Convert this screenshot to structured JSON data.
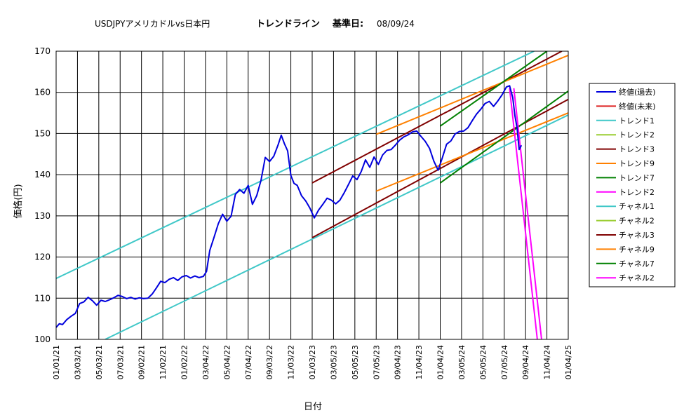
{
  "chart_data": {
    "type": "line",
    "title": "USDJPYアメリカドルvs日本円",
    "subtitle": "トレンドライン",
    "base_date_label": "基準日:",
    "base_date": "08/09/24",
    "xlabel": "日付",
    "ylabel": "価格(円)",
    "ylim": [
      100,
      170
    ],
    "yticks": [
      "100",
      "110",
      "120",
      "130",
      "140",
      "150",
      "160",
      "170"
    ],
    "x_tick_labels": [
      "01/01/21",
      "03/03/21",
      "05/03/21",
      "07/03/21",
      "09/02/21",
      "11/02/21",
      "01/02/22",
      "03/04/22",
      "05/04/22",
      "07/04/22",
      "09/03/22",
      "11/03/22",
      "01/03/23",
      "03/05/23",
      "05/05/23",
      "07/05/23",
      "09/04/23",
      "11/04/23",
      "01/04/24",
      "03/05/24",
      "05/05/24",
      "07/05/24",
      "09/04/24",
      "11/04/24",
      "01/04/25"
    ],
    "grid": true,
    "legend_position": "right",
    "series": [
      {
        "name": "終値(過去)",
        "color": "#0000dd",
        "kind": "close",
        "points": [
          [
            0,
            102.9
          ],
          [
            0.15,
            103.8
          ],
          [
            0.3,
            103.6
          ],
          [
            0.5,
            104.8
          ],
          [
            0.7,
            105.6
          ],
          [
            0.9,
            106.3
          ],
          [
            1.1,
            108.7
          ],
          [
            1.3,
            109.1
          ],
          [
            1.5,
            110.2
          ],
          [
            1.7,
            109.4
          ],
          [
            1.9,
            108.3
          ],
          [
            2.1,
            109.5
          ],
          [
            2.3,
            109.2
          ],
          [
            2.5,
            109.6
          ],
          [
            2.7,
            110.1
          ],
          [
            2.9,
            110.7
          ],
          [
            3.1,
            110.4
          ],
          [
            3.3,
            109.9
          ],
          [
            3.5,
            110.2
          ],
          [
            3.7,
            109.8
          ],
          [
            3.9,
            110.1
          ],
          [
            4.1,
            109.9
          ],
          [
            4.3,
            110.0
          ],
          [
            4.5,
            111.0
          ],
          [
            4.7,
            112.5
          ],
          [
            4.9,
            114.1
          ],
          [
            5.1,
            113.8
          ],
          [
            5.3,
            114.6
          ],
          [
            5.5,
            115.0
          ],
          [
            5.7,
            114.3
          ],
          [
            5.9,
            115.2
          ],
          [
            6.1,
            115.5
          ],
          [
            6.3,
            114.9
          ],
          [
            6.5,
            115.4
          ],
          [
            6.7,
            115.0
          ],
          [
            6.9,
            115.3
          ],
          [
            7.05,
            116.5
          ],
          [
            7.2,
            121.6
          ],
          [
            7.4,
            124.8
          ],
          [
            7.6,
            128.1
          ],
          [
            7.8,
            130.4
          ],
          [
            8.0,
            128.7
          ],
          [
            8.2,
            129.9
          ],
          [
            8.4,
            135.2
          ],
          [
            8.6,
            136.4
          ],
          [
            8.8,
            135.5
          ],
          [
            9.0,
            137.4
          ],
          [
            9.2,
            132.8
          ],
          [
            9.4,
            134.9
          ],
          [
            9.6,
            138.6
          ],
          [
            9.8,
            144.2
          ],
          [
            10.0,
            143.2
          ],
          [
            10.2,
            144.5
          ],
          [
            10.4,
            147.2
          ],
          [
            10.55,
            149.6
          ],
          [
            10.7,
            147.5
          ],
          [
            10.85,
            145.8
          ],
          [
            11.0,
            139.8
          ],
          [
            11.15,
            137.9
          ],
          [
            11.3,
            137.4
          ],
          [
            11.5,
            134.9
          ],
          [
            11.7,
            133.6
          ],
          [
            11.9,
            131.8
          ],
          [
            12.1,
            129.5
          ],
          [
            12.3,
            131.4
          ],
          [
            12.5,
            132.8
          ],
          [
            12.7,
            134.3
          ],
          [
            12.9,
            133.8
          ],
          [
            13.1,
            132.9
          ],
          [
            13.3,
            133.8
          ],
          [
            13.5,
            135.6
          ],
          [
            13.7,
            137.6
          ],
          [
            13.9,
            139.7
          ],
          [
            14.1,
            138.8
          ],
          [
            14.3,
            140.8
          ],
          [
            14.5,
            143.6
          ],
          [
            14.7,
            141.8
          ],
          [
            14.9,
            144.3
          ],
          [
            15.1,
            142.5
          ],
          [
            15.3,
            144.8
          ],
          [
            15.5,
            145.9
          ],
          [
            15.7,
            146.1
          ],
          [
            15.9,
            147.2
          ],
          [
            16.1,
            148.4
          ],
          [
            16.3,
            149.2
          ],
          [
            16.5,
            149.7
          ],
          [
            16.7,
            150.4
          ],
          [
            16.9,
            150.6
          ],
          [
            17.1,
            149.3
          ],
          [
            17.3,
            148.1
          ],
          [
            17.5,
            146.4
          ],
          [
            17.7,
            143.3
          ],
          [
            17.9,
            141.1
          ],
          [
            18.1,
            144.1
          ],
          [
            18.3,
            147.4
          ],
          [
            18.5,
            148.2
          ],
          [
            18.7,
            149.9
          ],
          [
            18.9,
            150.5
          ],
          [
            19.1,
            150.6
          ],
          [
            19.3,
            151.4
          ],
          [
            19.5,
            153.1
          ],
          [
            19.7,
            154.7
          ],
          [
            19.9,
            155.9
          ],
          [
            20.1,
            157.3
          ],
          [
            20.3,
            157.8
          ],
          [
            20.5,
            156.6
          ],
          [
            20.7,
            157.9
          ],
          [
            20.9,
            159.4
          ],
          [
            21.1,
            161.3
          ],
          [
            21.25,
            161.6
          ],
          [
            21.4,
            158.7
          ],
          [
            21.5,
            154.3
          ],
          [
            21.6,
            151.4
          ],
          [
            21.7,
            146.1
          ],
          [
            21.8,
            147.1
          ]
        ]
      },
      {
        "name": "終値(未来)",
        "color": "#dd2222",
        "kind": "none"
      },
      {
        "name": "トレンド1",
        "color": "#40c8c8",
        "kind": "line",
        "p1": [
          2.3,
          100.0
        ],
        "p2": [
          24,
          154.5
        ]
      },
      {
        "name": "トレンド2",
        "color": "#9acd32",
        "kind": "none"
      },
      {
        "name": "トレンド3",
        "color": "#800000",
        "kind": "line",
        "p1": [
          12,
          124.7
        ],
        "p2": [
          24,
          158.3
        ]
      },
      {
        "name": "トレンド9",
        "color": "#ff8000",
        "kind": "line",
        "p1": [
          15,
          136.0
        ],
        "p2": [
          24,
          155.0
        ]
      },
      {
        "name": "トレンド7",
        "color": "#008000",
        "kind": "line",
        "p1": [
          18,
          138.0
        ],
        "p2": [
          24,
          160.3
        ]
      },
      {
        "name": "トレンド2",
        "color": "#ff00ff",
        "kind": "line",
        "p1": [
          21.25,
          161.0
        ],
        "p2": [
          22.55,
          100.0
        ]
      },
      {
        "name": "チャネル1",
        "color": "#40c8c8",
        "kind": "line",
        "p1": [
          0,
          114.8
        ],
        "p2": [
          22.4,
          170.0
        ]
      },
      {
        "name": "チャネル2",
        "color": "#9acd32",
        "kind": "none"
      },
      {
        "name": "チャネル3",
        "color": "#800000",
        "kind": "line",
        "p1": [
          12,
          138.0
        ],
        "p2": [
          23.7,
          170.0
        ]
      },
      {
        "name": "チャネル9",
        "color": "#ff8000",
        "kind": "line",
        "p1": [
          15,
          149.8
        ],
        "p2": [
          24,
          169.0
        ]
      },
      {
        "name": "チャネル7",
        "color": "#008000",
        "kind": "line",
        "p1": [
          18,
          151.8
        ],
        "p2": [
          23.0,
          170.0
        ]
      },
      {
        "name": "チャネル2",
        "color": "#ff00ff",
        "kind": "line",
        "p1": [
          21.45,
          161.0
        ],
        "p2": [
          22.75,
          100.0
        ]
      }
    ]
  }
}
